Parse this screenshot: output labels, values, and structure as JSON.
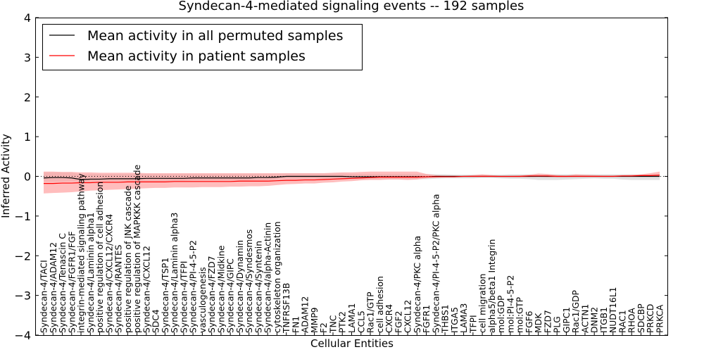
{
  "chart_data": {
    "type": "line",
    "title": "Syndecan-4-mediated signaling events -- 192 samples",
    "xlabel": "Cellular Entities",
    "ylabel": "Inferred Activity",
    "ylim": [
      -4,
      4
    ],
    "yticks": [
      -4,
      -3,
      -2,
      -1,
      0,
      1,
      2,
      3,
      4
    ],
    "ytick_labels": [
      "−4",
      "−3",
      "−2",
      "−1",
      "0",
      "1",
      "2",
      "3",
      "4"
    ],
    "legend_position": "top-left",
    "categories": [
      "Syndecan-4/TACI",
      "Syndecan-4/ADAM12",
      "Syndecan-4/Tenascin C",
      "Syndecan-4/FGFR1/FGF",
      "integrin-mediated signaling pathway",
      "Syndecan-4/Laminin alpha1",
      "positive regulation of cell adhesion",
      "Syndecan-4/CXCL12/CXCR4",
      "Syndecan-4/RANTES",
      "positive regulation of JNK cascade",
      "positive regulation of MAPKKK cascade",
      "Syndecan-4/CXCL12",
      "SDC4",
      "Syndecan-4/TSP1",
      "Syndecan-4/Laminin alpha3",
      "Syndecan-4/TFPI",
      "Syndecan-4/PI-4-5-P2",
      "vasculogenesis",
      "Syndecan-4/FZD7",
      "Syndecan-4/Midkine",
      "Syndecan-4/GIPC",
      "Syndecan-4/Dynamin",
      "Syndecan-4/Syndesmos",
      "Syndecan-4/Syntenin",
      "Syndecan-4/alpha-Actinin",
      "cytoskeleton organization",
      "TNFRSF13B",
      "FN1",
      "ADAM12",
      "MMP9",
      "F2",
      "TNC",
      "PTK2",
      "LAMA1",
      "CCL5",
      "Rac1/GTP",
      "cell adhesion",
      "CXCR4",
      "FGF2",
      "CXCL12",
      "Syndecan-4/PKC alpha",
      "FGFR1",
      "Syndecan-4/PI-4-5-P2/PKC alpha",
      "THBS1",
      "ITGA5",
      "LAMA3",
      "TFPI",
      "cell migration",
      "alpha5/beta1 Integrin",
      "mol:GDP",
      "mol:PI-4-5-P2",
      "mol:GTP",
      "FGF6",
      "MDK",
      "FZD7",
      "PLG",
      "GIPC1",
      "Rac1/GDP",
      "ACTN1",
      "DNM2",
      "ITGB1",
      "NUDT16L1",
      "RAC1",
      "RHOA",
      "SDCBP",
      "PRKCD",
      "PRKCA"
    ],
    "series": [
      {
        "name": "Mean activity in all permuted samples",
        "color": "#000000",
        "band_color": "#c8c8c8",
        "values": [
          -0.04,
          -0.03,
          -0.03,
          -0.04,
          -0.08,
          -0.07,
          -0.07,
          -0.06,
          -0.06,
          -0.06,
          -0.06,
          -0.05,
          -0.05,
          -0.05,
          -0.05,
          -0.05,
          -0.04,
          -0.04,
          -0.04,
          -0.04,
          -0.04,
          -0.04,
          -0.04,
          -0.03,
          -0.03,
          -0.02,
          0.0,
          0.0,
          0.0,
          0.0,
          0.0,
          0.0,
          0.0,
          -0.01,
          -0.01,
          -0.01,
          -0.01,
          -0.01,
          -0.01,
          -0.01,
          -0.01,
          -0.01,
          0.0,
          0.0,
          0.0,
          0.0,
          0.0,
          0.0,
          0.0,
          0.0,
          0.0,
          0.0,
          0.0,
          0.0,
          0.0,
          0.0,
          0.0,
          0.0,
          0.0,
          0.0,
          0.0,
          0.0,
          0.0,
          0.0,
          0.0,
          0.0,
          0.0
        ],
        "band_low": [
          -0.13,
          -0.13,
          -0.13,
          -0.12,
          -0.14,
          -0.13,
          -0.13,
          -0.12,
          -0.12,
          -0.12,
          -0.12,
          -0.11,
          -0.11,
          -0.11,
          -0.11,
          -0.11,
          -0.1,
          -0.1,
          -0.1,
          -0.1,
          -0.1,
          -0.1,
          -0.1,
          -0.09,
          -0.09,
          -0.08,
          -0.06,
          -0.06,
          -0.06,
          -0.06,
          -0.06,
          -0.06,
          -0.07,
          -0.07,
          -0.07,
          -0.07,
          -0.07,
          -0.07,
          -0.07,
          -0.07,
          -0.07,
          -0.07,
          -0.06,
          -0.05,
          -0.05,
          -0.05,
          -0.05,
          -0.04,
          -0.04,
          -0.05,
          -0.06,
          -0.06,
          -0.07,
          -0.09,
          -0.09,
          -0.09,
          -0.08,
          -0.07,
          -0.06,
          -0.05,
          -0.06,
          -0.06,
          -0.08,
          -0.09,
          -0.09,
          -0.09,
          -0.09
        ],
        "band_high": [
          0.1,
          0.1,
          0.1,
          0.1,
          0.05,
          0.06,
          0.06,
          0.06,
          0.06,
          0.06,
          0.06,
          0.06,
          0.06,
          0.06,
          0.06,
          0.06,
          0.06,
          0.06,
          0.06,
          0.06,
          0.06,
          0.06,
          0.06,
          0.06,
          0.06,
          0.06,
          0.07,
          0.07,
          0.07,
          0.07,
          0.07,
          0.07,
          0.07,
          0.06,
          0.06,
          0.06,
          0.06,
          0.06,
          0.06,
          0.06,
          0.06,
          0.06,
          0.05,
          0.05,
          0.04,
          0.04,
          0.04,
          0.04,
          0.04,
          0.04,
          0.05,
          0.05,
          0.05,
          0.05,
          0.05,
          0.05,
          0.05,
          0.05,
          0.05,
          0.05,
          0.05,
          0.05,
          0.05,
          0.05,
          0.05,
          0.05,
          0.05
        ]
      },
      {
        "name": "Mean activity in patient samples",
        "color": "#ff0000",
        "band_color": "#ff9999",
        "values": [
          -0.18,
          -0.18,
          -0.17,
          -0.17,
          -0.16,
          -0.16,
          -0.15,
          -0.15,
          -0.15,
          -0.14,
          -0.14,
          -0.14,
          -0.14,
          -0.14,
          -0.13,
          -0.13,
          -0.13,
          -0.13,
          -0.13,
          -0.13,
          -0.13,
          -0.12,
          -0.12,
          -0.12,
          -0.12,
          -0.11,
          -0.1,
          -0.1,
          -0.09,
          -0.09,
          -0.08,
          -0.07,
          -0.06,
          -0.05,
          -0.04,
          -0.03,
          -0.02,
          -0.02,
          -0.02,
          -0.02,
          -0.02,
          -0.01,
          -0.01,
          -0.01,
          -0.01,
          0.0,
          0.0,
          0.0,
          0.0,
          0.0,
          0.0,
          0.0,
          0.01,
          0.01,
          0.01,
          0.0,
          0.0,
          0.0,
          0.0,
          0.0,
          0.0,
          0.0,
          0.01,
          0.01,
          0.02,
          0.02,
          0.03
        ],
        "band_low": [
          -0.43,
          -0.42,
          -0.41,
          -0.4,
          -0.38,
          -0.36,
          -0.35,
          -0.34,
          -0.33,
          -0.32,
          -0.31,
          -0.3,
          -0.29,
          -0.29,
          -0.28,
          -0.28,
          -0.28,
          -0.27,
          -0.27,
          -0.27,
          -0.26,
          -0.26,
          -0.25,
          -0.25,
          -0.24,
          -0.22,
          -0.2,
          -0.19,
          -0.18,
          -0.18,
          -0.16,
          -0.15,
          -0.13,
          -0.12,
          -0.1,
          -0.09,
          -0.09,
          -0.08,
          -0.08,
          -0.09,
          -0.08,
          -0.05,
          -0.03,
          -0.02,
          -0.02,
          -0.01,
          -0.01,
          -0.01,
          -0.01,
          -0.02,
          -0.02,
          -0.02,
          -0.02,
          -0.01,
          -0.02,
          -0.02,
          -0.02,
          -0.01,
          -0.01,
          -0.01,
          -0.01,
          -0.01,
          -0.01,
          -0.01,
          -0.01,
          -0.01,
          -0.01
        ],
        "band_high": [
          0.12,
          0.12,
          0.11,
          0.11,
          0.1,
          0.1,
          0.09,
          0.09,
          0.09,
          0.09,
          0.09,
          0.08,
          0.08,
          0.08,
          0.08,
          0.08,
          0.08,
          0.08,
          0.08,
          0.08,
          0.08,
          0.08,
          0.08,
          0.08,
          0.08,
          0.08,
          0.08,
          0.08,
          0.08,
          0.08,
          0.08,
          0.09,
          0.1,
          0.1,
          0.11,
          0.12,
          0.12,
          0.12,
          0.12,
          0.12,
          0.12,
          0.06,
          0.03,
          0.02,
          0.02,
          0.01,
          0.03,
          0.05,
          0.03,
          0.01,
          0.01,
          0.02,
          0.04,
          0.07,
          0.06,
          0.03,
          0.02,
          0.05,
          0.04,
          0.03,
          0.02,
          0.02,
          0.03,
          0.04,
          0.05,
          0.08,
          0.12
        ]
      }
    ]
  }
}
